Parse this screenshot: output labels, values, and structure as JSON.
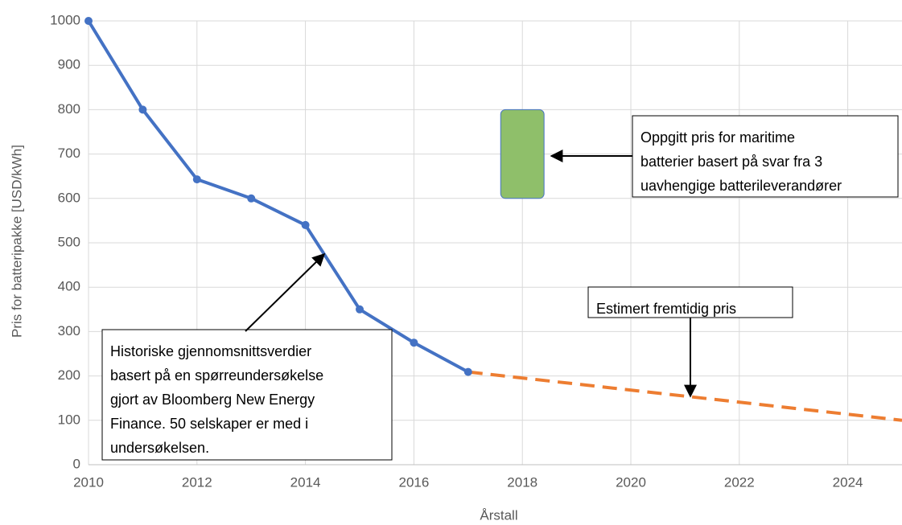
{
  "chart_data": {
    "type": "line",
    "xlabel": "Årstall",
    "ylabel": "Pris for batteripakke [USD/kWh]",
    "xlim": [
      2010,
      2025
    ],
    "xticks": [
      2010,
      2012,
      2014,
      2016,
      2018,
      2020,
      2022,
      2024
    ],
    "ylim": [
      0,
      1000
    ],
    "yticks": [
      0,
      100,
      200,
      300,
      400,
      500,
      600,
      700,
      800,
      900,
      1000
    ],
    "grid": true,
    "series": [
      {
        "x": [
          2010,
          2011,
          2012,
          2013,
          2014,
          2015,
          2016,
          2017
        ],
        "values": [
          1000,
          800,
          643,
          600,
          540,
          350,
          275,
          209
        ],
        "color": "#4472c4",
        "style": "solid",
        "markers": true
      },
      {
        "x": [
          2017,
          2025
        ],
        "values": [
          209,
          100
        ],
        "color": "#ed7d31",
        "style": "dashed",
        "markers": false
      }
    ],
    "range": {
      "x": [
        2017.6,
        2018.4
      ],
      "low": 600,
      "high": 800,
      "color": "#8fbf6a"
    },
    "annotations": [
      {
        "lines": [
          "Historiske gjennomsnittsverdier",
          "basert på en spørreundersøkelse",
          "gjort av Bloomberg New Energy",
          "Finance. 50 selskaper er med i",
          "undersøkelsen."
        ]
      },
      {
        "lines": [
          "Oppgitt pris for maritime",
          "batterier basert på svar fra 3",
          "uavhengige batterileverandører"
        ]
      },
      {
        "lines": [
          "Estimert fremtidig pris"
        ]
      }
    ]
  }
}
